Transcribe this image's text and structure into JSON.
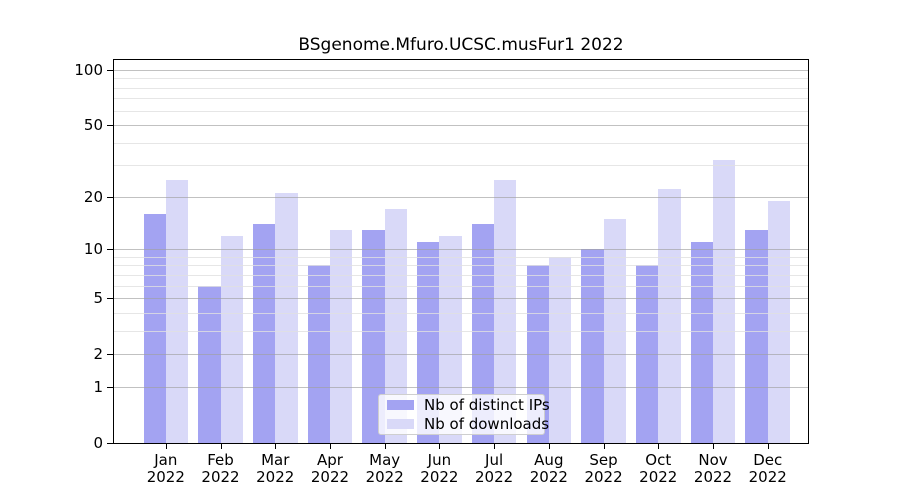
{
  "page": {
    "background": "#ffffff"
  },
  "chart_data": {
    "type": "bar",
    "title": "BSgenome.Mfuro.UCSC.musFur1 2022",
    "categories": [
      "Jan",
      "Feb",
      "Mar",
      "Apr",
      "May",
      "Jun",
      "Jul",
      "Aug",
      "Sep",
      "Oct",
      "Nov",
      "Dec"
    ],
    "year": "2022",
    "series": [
      {
        "name": "Nb of distinct IPs",
        "color": "#a3a3f2",
        "values": [
          16,
          6,
          14,
          8,
          13,
          11,
          14,
          8,
          10,
          8,
          11,
          13
        ]
      },
      {
        "name": "Nb of downloads",
        "color": "#d9d9f8",
        "values": [
          25,
          12,
          21,
          13,
          17,
          12,
          25,
          9,
          15,
          22,
          32,
          19
        ]
      }
    ],
    "y_axis": {
      "scale": "log1p",
      "major_ticks": [
        0,
        1,
        2,
        5,
        10,
        20,
        50,
        100
      ],
      "minor_gridlines": [
        3,
        4,
        6,
        7,
        8,
        9,
        30,
        40,
        60,
        70,
        80,
        90
      ],
      "top_value": 115
    },
    "grid": "on",
    "legend": {
      "position": "bottom-center"
    }
  }
}
